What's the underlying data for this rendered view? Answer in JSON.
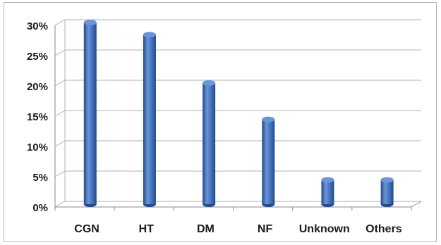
{
  "chart_data": {
    "type": "bar",
    "categories": [
      "CGN",
      "HT",
      "DM",
      "NF",
      "Unknown",
      "Others"
    ],
    "values": [
      30,
      28,
      20,
      14,
      4,
      4
    ],
    "yticks": [
      "0%",
      "5%",
      "10%",
      "15%",
      "20%",
      "25%",
      "30%"
    ],
    "ylim": [
      0,
      30
    ],
    "grid": true,
    "legend": "none",
    "bar_color": "#3f6fb8",
    "bar_dark_color": "#234a8a",
    "bar_light_color": "#6a95d6",
    "grid_color": "#b0b0b0"
  }
}
